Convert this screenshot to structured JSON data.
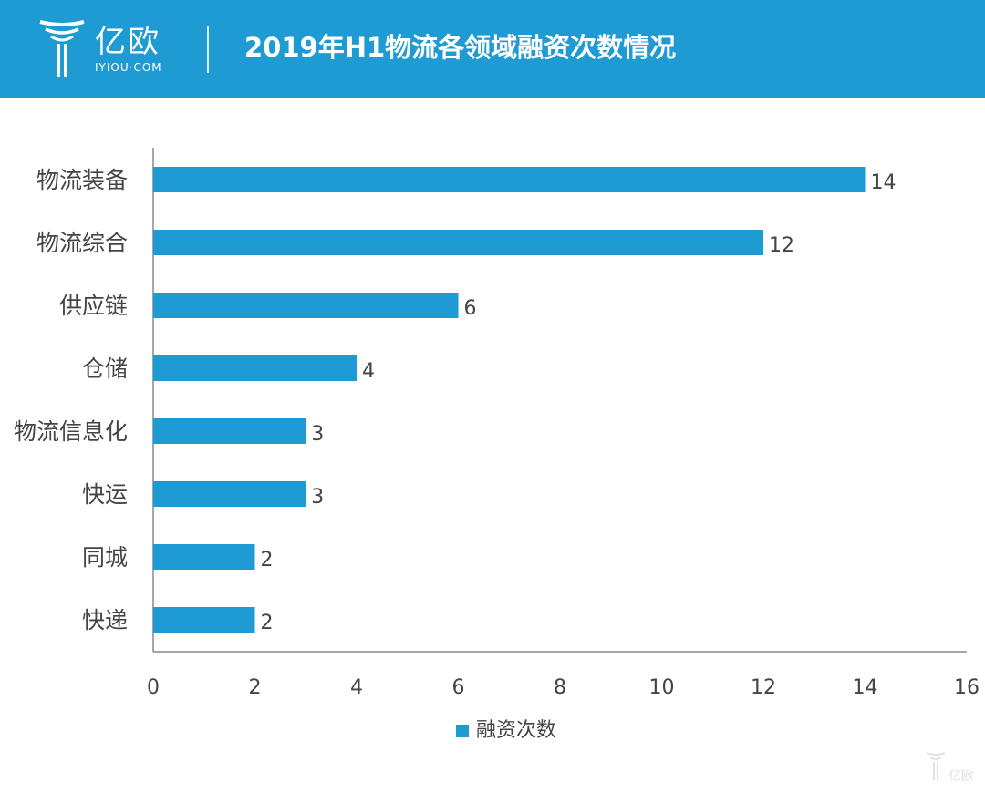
{
  "header": {
    "logo_cn": "亿欧",
    "logo_url": "IYIOU·COM",
    "title": "2019年H1物流各领域融资次数情况"
  },
  "colors": {
    "header_bg": "#1e9bd3",
    "bar": "#1e9bd3",
    "axis": "#888888",
    "text": "#444444"
  },
  "watermark": {
    "label": "亿欧"
  },
  "chart_data": {
    "type": "bar",
    "orientation": "horizontal",
    "categories": [
      "物流装备",
      "物流综合",
      "供应链",
      "仓储",
      "物流信息化",
      "快运",
      "同城",
      "快递"
    ],
    "series": [
      {
        "name": "融资次数",
        "values": [
          14,
          12,
          6,
          4,
          3,
          3,
          2,
          2
        ]
      }
    ],
    "xlim": [
      0,
      16
    ],
    "xticks": [
      0,
      2,
      4,
      6,
      8,
      10,
      12,
      14,
      16
    ],
    "data_labels": true,
    "grid": false,
    "legend": "bottom"
  }
}
